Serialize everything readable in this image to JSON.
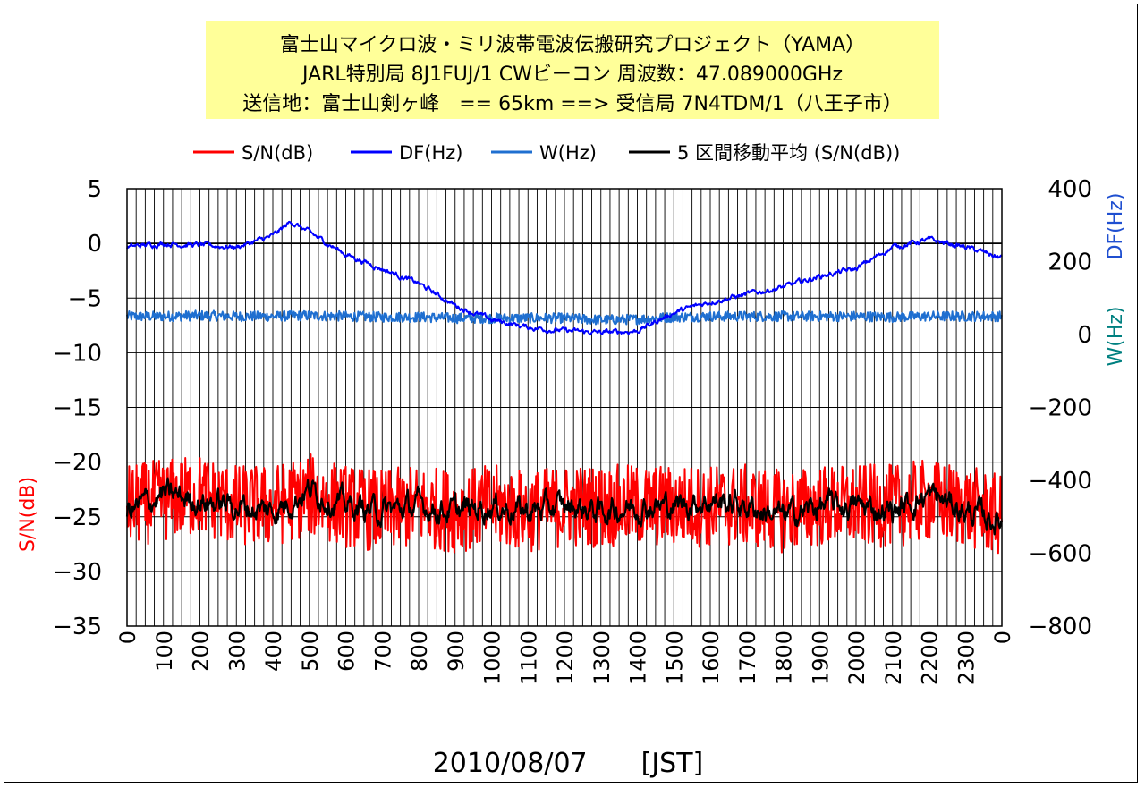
{
  "chart_data": {
    "type": "line",
    "title_lines": [
      "富士山マイクロ波・ミリ波帯電波伝搬研究プロジェクト（YAMA）",
      "JARL特別局 8J1FUJ/1 CWビーコン 周波数：47.089000GHz",
      "送信地：富士山剣ヶ峰　== 65km ==> 受信局 7N4TDM/1（八王子市）"
    ],
    "xlabel": "2010/08/07　　[JST]",
    "ylabel_left": "S/N(dB)",
    "ylabel_right_top": "DF(Hz)",
    "ylabel_right_bottom": "W(Hz)",
    "ylim_left": [
      -35,
      5
    ],
    "ylim_right": [
      -800,
      400
    ],
    "yticks_left": [
      "5",
      "0",
      "-5",
      "-10",
      "-15",
      "-20",
      "-25",
      "-30",
      "-35"
    ],
    "yticks_right": [
      "400",
      "200",
      "0",
      "-200",
      "-400",
      "-600",
      "-800"
    ],
    "xticks": [
      "0",
      "100",
      "200",
      "300",
      "400",
      "500",
      "600",
      "700",
      "800",
      "900",
      "1000",
      "1100",
      "1200",
      "1300",
      "1400",
      "1500",
      "1600",
      "1700",
      "1800",
      "1900",
      "2000",
      "2100",
      "2200",
      "2300",
      "0"
    ],
    "grid": true,
    "legend_position": "top",
    "legend": [
      "S/N(dB)",
      "DF(Hz)",
      "W(Hz)",
      "5 区間移動平均 (S/N(dB))"
    ],
    "colors": {
      "sn": "#ff0000",
      "df": "#0000ff",
      "w": "#1f6fd0",
      "ma": "#000000",
      "ylabel_left": "#ff0000",
      "ylabel_df": "#1f4fd0",
      "ylabel_w": "#008080",
      "title_bg": "#ffff99"
    },
    "series": [
      {
        "name": "S/N(dB)",
        "axis": "left",
        "x": [
          0,
          100,
          200,
          300,
          400,
          500,
          600,
          700,
          800,
          900,
          1000,
          1100,
          1200,
          1300,
          1400,
          1500,
          1600,
          1700,
          1800,
          1900,
          2000,
          2100,
          2200,
          2300,
          2400
        ],
        "values": [
          -24,
          -23.5,
          -23,
          -24,
          -24,
          -23,
          -24,
          -24.5,
          -24,
          -24.5,
          -24,
          -24.5,
          -24,
          -24,
          -24,
          -24,
          -24,
          -24,
          -24.5,
          -24,
          -24,
          -24,
          -23.5,
          -24,
          -25
        ]
      },
      {
        "name": "5 区間移動平均 (S/N(dB))",
        "axis": "left",
        "x": [
          0,
          100,
          200,
          300,
          400,
          500,
          600,
          700,
          800,
          900,
          1000,
          1100,
          1200,
          1300,
          1400,
          1500,
          1600,
          1700,
          1800,
          1900,
          2000,
          2100,
          2200,
          2300,
          2400
        ],
        "values": [
          -24.5,
          -23,
          -23.5,
          -24,
          -24.5,
          -22.5,
          -24,
          -24.5,
          -24,
          -24.5,
          -24,
          -24.5,
          -24,
          -24.5,
          -24,
          -24,
          -23.5,
          -24,
          -25,
          -24,
          -24,
          -24.5,
          -23,
          -24.5,
          -25.5
        ]
      },
      {
        "name": "DF(Hz)",
        "axis": "right",
        "x": [
          0,
          100,
          200,
          300,
          400,
          450,
          500,
          600,
          700,
          800,
          900,
          1000,
          1100,
          1200,
          1300,
          1400,
          1500,
          1600,
          1700,
          1800,
          1900,
          2000,
          2100,
          2200,
          2300,
          2400
        ],
        "values": [
          240,
          250,
          245,
          240,
          270,
          310,
          280,
          220,
          180,
          140,
          80,
          40,
          20,
          10,
          5,
          10,
          60,
          90,
          110,
          130,
          160,
          180,
          240,
          260,
          240,
          210
        ]
      },
      {
        "name": "W(Hz)",
        "axis": "right",
        "x": [
          0,
          100,
          200,
          300,
          400,
          500,
          600,
          700,
          800,
          900,
          1000,
          1100,
          1200,
          1300,
          1400,
          1500,
          1600,
          1700,
          1800,
          1900,
          2000,
          2100,
          2200,
          2300,
          2400
        ],
        "values": [
          50,
          50,
          52,
          50,
          50,
          52,
          50,
          48,
          48,
          45,
          45,
          45,
          45,
          40,
          42,
          48,
          50,
          50,
          50,
          50,
          50,
          48,
          50,
          50,
          50
        ]
      }
    ]
  }
}
